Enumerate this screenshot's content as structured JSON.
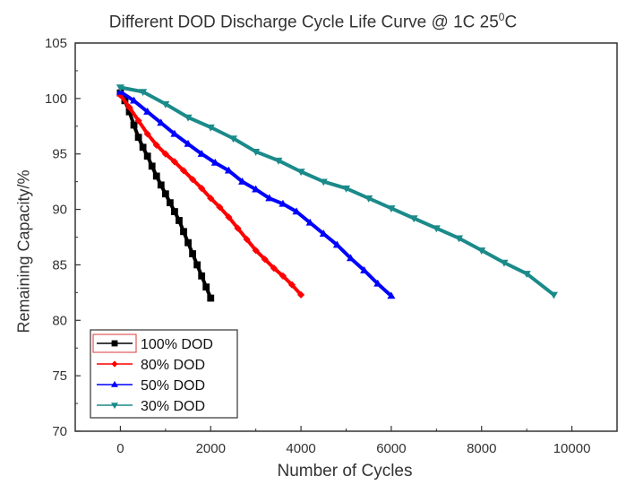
{
  "chart_data": {
    "type": "scatter",
    "title": "Different DOD Discharge Cycle Life Curve @ 1C 25",
    "title_superscript": "0",
    "title_suffix": "C",
    "xlabel": "Number of Cycles",
    "ylabel": "Remaining Capacity/%",
    "xlim": [
      -1000,
      11000
    ],
    "ylim": [
      70,
      105
    ],
    "xticks": [
      0,
      2000,
      4000,
      6000,
      8000,
      10000
    ],
    "yticks": [
      70,
      75,
      80,
      85,
      90,
      95,
      100,
      105
    ],
    "legend_position": "bottom-left",
    "series": [
      {
        "name": "100% DOD",
        "color": "#000000",
        "marker": "square",
        "x": [
          0,
          100,
          200,
          300,
          400,
          500,
          600,
          700,
          800,
          900,
          1000,
          1100,
          1200,
          1300,
          1400,
          1500,
          1600,
          1700,
          1800,
          1900,
          2000
        ],
        "y": [
          100.5,
          99.8,
          98.8,
          97.6,
          96.5,
          95.6,
          94.8,
          93.9,
          93.0,
          92.2,
          91.4,
          90.6,
          89.8,
          89.0,
          88.0,
          87.0,
          86.0,
          85.0,
          84.0,
          83.0,
          82.0
        ]
      },
      {
        "name": "80% DOD",
        "color": "#ff0000",
        "marker": "diamond",
        "x": [
          0,
          200,
          400,
          600,
          800,
          1000,
          1200,
          1400,
          1600,
          1800,
          2000,
          2200,
          2400,
          2600,
          2800,
          3000,
          3200,
          3400,
          3600,
          3800,
          4000
        ],
        "y": [
          100.3,
          99.2,
          98.0,
          96.8,
          95.8,
          95.0,
          94.3,
          93.5,
          92.7,
          91.9,
          91.0,
          90.2,
          89.3,
          88.3,
          87.3,
          86.3,
          85.5,
          84.7,
          84.0,
          83.2,
          82.3
        ]
      },
      {
        "name": "50% DOD",
        "color": "#0000ff",
        "marker": "triangle-up",
        "x": [
          0,
          300,
          600,
          900,
          1200,
          1500,
          1800,
          2100,
          2400,
          2700,
          3000,
          3300,
          3600,
          3900,
          4200,
          4500,
          4800,
          5100,
          5400,
          5700,
          6000
        ],
        "y": [
          100.6,
          99.8,
          98.8,
          97.8,
          96.8,
          95.9,
          95.0,
          94.2,
          93.5,
          92.5,
          91.8,
          91.0,
          90.5,
          89.8,
          88.8,
          87.8,
          86.8,
          85.6,
          84.5,
          83.3,
          82.2
        ]
      },
      {
        "name": "30% DOD",
        "color": "#1b8a8a",
        "marker": "triangle-down",
        "x": [
          0,
          500,
          1000,
          1500,
          2000,
          2500,
          3000,
          3500,
          4000,
          4500,
          5000,
          5500,
          6000,
          6500,
          7000,
          7500,
          8000,
          8500,
          9000,
          9600
        ],
        "y": [
          101.0,
          100.6,
          99.5,
          98.3,
          97.4,
          96.4,
          95.2,
          94.4,
          93.4,
          92.5,
          91.9,
          91.0,
          90.1,
          89.2,
          88.3,
          87.4,
          86.3,
          85.2,
          84.2,
          82.3
        ]
      }
    ]
  }
}
